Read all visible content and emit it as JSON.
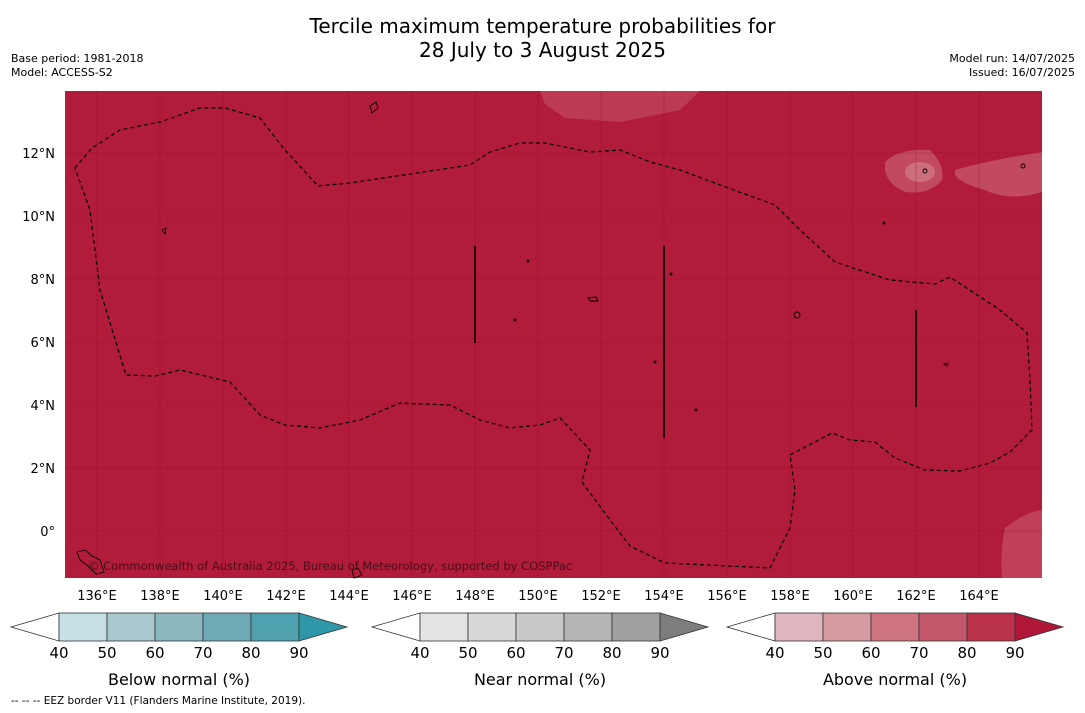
{
  "title_line1": "Tercile maximum temperature probabilities for",
  "title_line2": "28 July to 3 August 2025",
  "meta_left": {
    "base_period": "Base period: 1981-2018",
    "model": "Model: ACCESS-S2"
  },
  "meta_right": {
    "model_run": "Model run: 14/07/2025",
    "issued": "Issued: 16/07/2025"
  },
  "map": {
    "x_ticks": [
      "136°E",
      "138°E",
      "140°E",
      "142°E",
      "144°E",
      "146°E",
      "148°E",
      "150°E",
      "152°E",
      "154°E",
      "156°E",
      "158°E",
      "160°E",
      "162°E",
      "164°E"
    ],
    "y_ticks": [
      "12°N",
      "10°N",
      "8°N",
      "6°N",
      "4°N",
      "2°N",
      "0°"
    ],
    "copyright": "© Commonwealth of Australia 2025, Bureau of Meteorology, supported by COSPPac",
    "fill_color": "#b11c3b"
  },
  "legends": [
    {
      "label": "Below normal (%)",
      "ticks": [
        "40",
        "50",
        "60",
        "70",
        "80",
        "90"
      ],
      "colors": [
        "#c7e0e6",
        "#a9c9cf",
        "#8cb7c0",
        "#6eaab6",
        "#4fa1b0",
        "#2f97a8"
      ]
    },
    {
      "label": "Near normal (%)",
      "ticks": [
        "40",
        "50",
        "60",
        "70",
        "80",
        "90"
      ],
      "colors": [
        "#e4e4e4",
        "#d8d8d8",
        "#c9c9c9",
        "#b5b5b5",
        "#a0a0a0",
        "#7d7d7d"
      ]
    },
    {
      "label": "Above normal (%)",
      "ticks": [
        "40",
        "50",
        "60",
        "70",
        "80",
        "90"
      ],
      "colors": [
        "#dfb6bd",
        "#d79aa2",
        "#cd7480",
        "#c2566a",
        "#ba3249",
        "#b01638"
      ]
    }
  ],
  "footer": "--  --  -- EEZ border V11 (Flanders Marine Institute, 2019)."
}
